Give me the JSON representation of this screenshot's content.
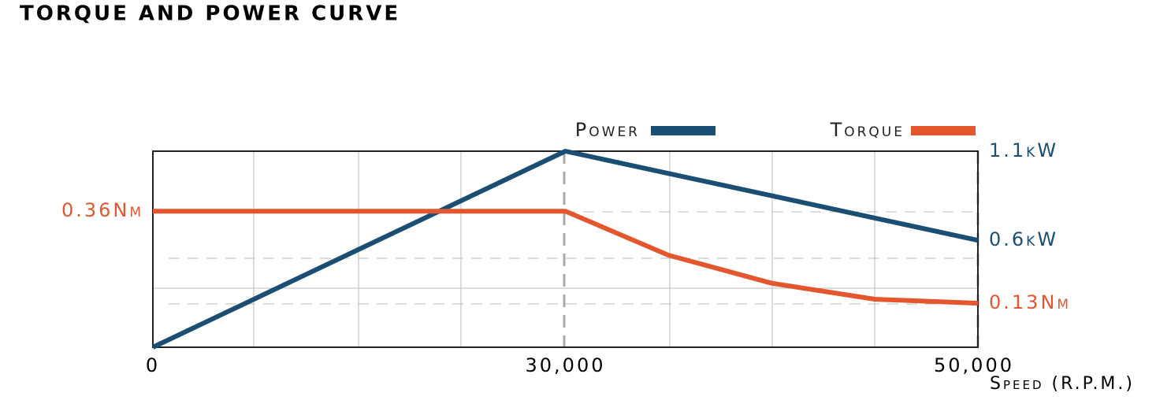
{
  "chart_data": {
    "type": "line",
    "title": "TORQUE AND POWER CURVE",
    "x_label": "Speed (R.P.M.)",
    "categories": [
      "0",
      null,
      null,
      null,
      "30,000",
      null,
      null,
      null,
      "50,000"
    ],
    "ylim": [
      0.02,
      0.51
    ],
    "y2lim": [
      0,
      1.1
    ],
    "series": [
      {
        "name": "Power",
        "color": "#1a4e73",
        "axis": "y2",
        "values": [
          0,
          0.275,
          0.55,
          0.825,
          1.1,
          0.975,
          0.85,
          0.725,
          0.6
        ],
        "value_labels": [
          null,
          null,
          null,
          null,
          "1.1kW",
          null,
          null,
          null,
          "0.6kW"
        ]
      },
      {
        "name": "Torque",
        "color": "#e4572e",
        "axis": "y",
        "values": [
          0.36,
          0.36,
          0.36,
          0.36,
          0.36,
          0.25,
          0.18,
          0.14,
          0.13
        ],
        "value_labels": [
          "0.36Nm",
          null,
          null,
          null,
          null,
          null,
          null,
          null,
          "0.13Nm"
        ]
      }
    ]
  }
}
